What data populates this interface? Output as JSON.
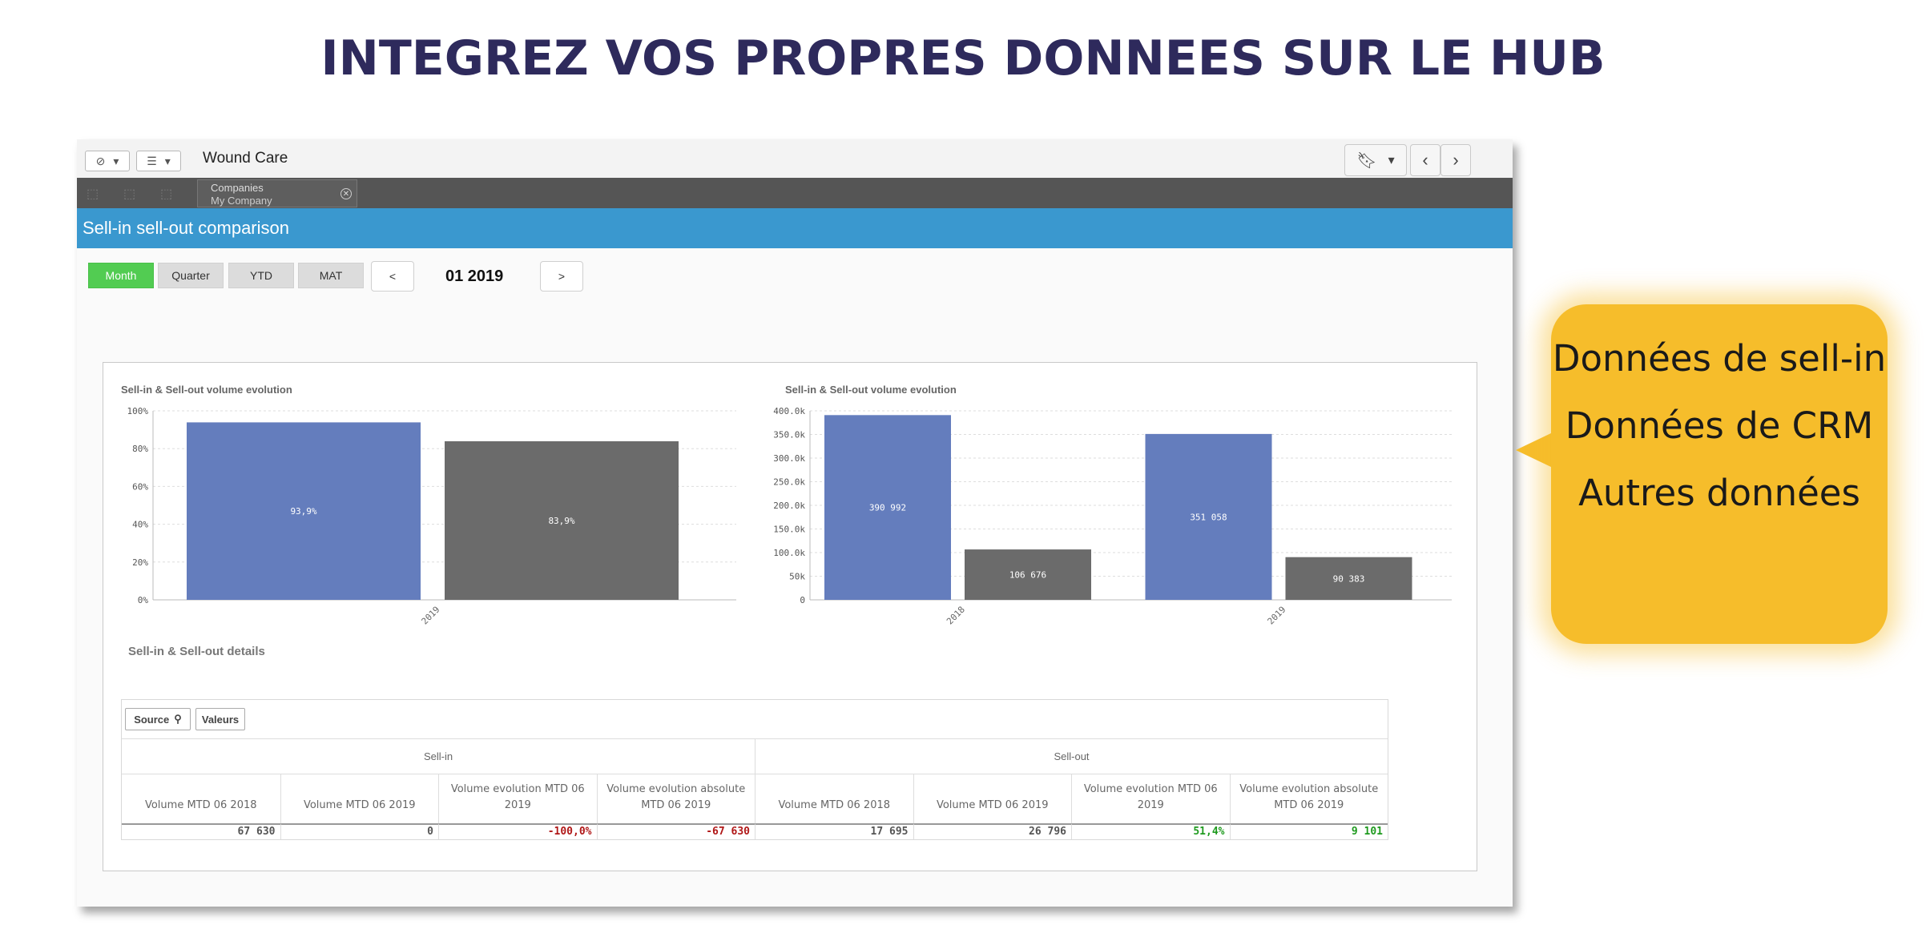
{
  "slide_title": "INTEGREZ VOS PROPRES DONNEES SUR LE HUB",
  "app": {
    "name": "Wound Care",
    "selection": {
      "field": "Companies",
      "value": "My Company"
    },
    "sheet_title": "Sell-in sell-out comparison"
  },
  "period": {
    "buttons": [
      "Month",
      "Quarter",
      "YTD",
      "MAT"
    ],
    "active": "Month",
    "prev_label": "<",
    "next_label": ">",
    "current": "01 2019"
  },
  "chart_data": [
    {
      "type": "bar",
      "title": "Sell-in & Sell-out volume evolution",
      "categories": [
        "2019"
      ],
      "series": [
        {
          "values": [
            93.9
          ],
          "labels": [
            "93,9%"
          ],
          "color": "#647dbd"
        },
        {
          "values": [
            83.9
          ],
          "labels": [
            "83,9%"
          ],
          "color": "#6b6b6b"
        }
      ],
      "ylim": [
        0,
        100
      ],
      "yticks": [
        "0%",
        "20%",
        "40%",
        "60%",
        "80%",
        "100%"
      ],
      "grid": true
    },
    {
      "type": "bar",
      "title": "Sell-in & Sell-out volume evolution",
      "categories": [
        "2018",
        "2019"
      ],
      "series": [
        {
          "values": [
            390992,
            351058
          ],
          "labels": [
            "390 992",
            "351 058"
          ],
          "color": "#647dbd"
        },
        {
          "values": [
            106676,
            90383
          ],
          "labels": [
            "106 676",
            "90 383"
          ],
          "color": "#6b6b6b"
        }
      ],
      "ylim": [
        0,
        400000
      ],
      "yticks": [
        "0",
        "50k",
        "100.0k",
        "150.0k",
        "200.0k",
        "250.0k",
        "300.0k",
        "350.0k",
        "400.0k"
      ],
      "grid": true
    }
  ],
  "details": {
    "title": "Sell-in & Sell-out details",
    "buttons": {
      "source": "Source",
      "valeurs": "Valeurs"
    },
    "groups": [
      "Sell-in",
      "Sell-out"
    ],
    "headers": [
      "Volume MTD 06 2018",
      "Volume MTD 06 2019",
      "Volume evolution MTD 06 2019",
      "Volume evolution absolute MTD 06 2019",
      "Volume MTD 06 2018",
      "Volume MTD 06 2019",
      "Volume evolution MTD 06 2019",
      "Volume evolution absolute MTD 06 2019"
    ],
    "row": [
      "67 630",
      "0",
      "-100,0%",
      "-67 630",
      "17 695",
      "26 796",
      "51,4%",
      "9 101"
    ]
  },
  "callout": {
    "lines": [
      "Données de sell-in",
      "Données de CRM",
      "Autres données"
    ],
    "color": "#f6bd2b"
  }
}
